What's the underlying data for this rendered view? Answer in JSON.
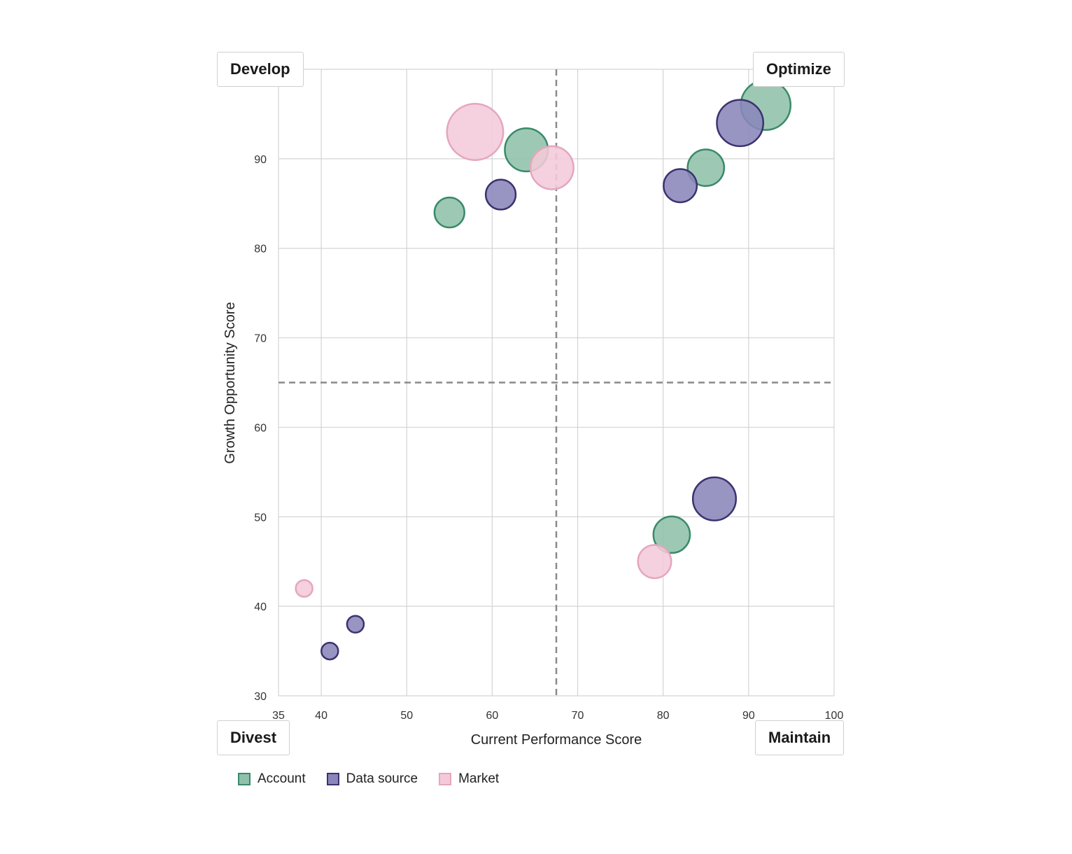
{
  "chart_data": {
    "type": "scatter",
    "xlabel": "Current Performance Score",
    "ylabel": "Growth Opportunity Score",
    "xlim": [
      35,
      100
    ],
    "ylim": [
      30,
      100
    ],
    "x_ticks": [
      35,
      40,
      50,
      60,
      70,
      80,
      90,
      100
    ],
    "y_ticks": [
      30,
      40,
      50,
      60,
      70,
      80,
      90
    ],
    "grid": true,
    "reference_lines": {
      "x": 67.5,
      "y": 65
    },
    "quadrant_labels": {
      "top_left": "Develop",
      "top_right": "Optimize",
      "bottom_left": "Divest",
      "bottom_right": "Maintain"
    },
    "legend_position": "bottom-left",
    "series": [
      {
        "name": "Account",
        "fill": "#8fc1aa",
        "stroke": "#3a8a6a",
        "points": [
          {
            "x": 55,
            "y": 84,
            "size": 3
          },
          {
            "x": 64,
            "y": 91,
            "size": 5
          },
          {
            "x": 85,
            "y": 89,
            "size": 4
          },
          {
            "x": 92,
            "y": 96,
            "size": 6
          },
          {
            "x": 81,
            "y": 48,
            "size": 4
          }
        ]
      },
      {
        "name": "Data source",
        "fill": "#8a86bb",
        "stroke": "#3b336f",
        "points": [
          {
            "x": 61,
            "y": 86,
            "size": 3
          },
          {
            "x": 82,
            "y": 87,
            "size": 3.5
          },
          {
            "x": 89,
            "y": 94,
            "size": 5.5
          },
          {
            "x": 86,
            "y": 52,
            "size": 5
          },
          {
            "x": 44,
            "y": 38,
            "size": 1
          },
          {
            "x": 41,
            "y": 35,
            "size": 1
          }
        ]
      },
      {
        "name": "Market",
        "fill": "#f4cada",
        "stroke": "#e5a6bf",
        "points": [
          {
            "x": 58,
            "y": 93,
            "size": 7
          },
          {
            "x": 67,
            "y": 89,
            "size": 5
          },
          {
            "x": 79,
            "y": 45,
            "size": 3.5
          },
          {
            "x": 38,
            "y": 42,
            "size": 1
          }
        ]
      }
    ]
  }
}
